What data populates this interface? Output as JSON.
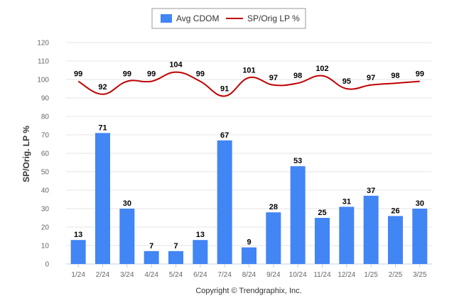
{
  "chart_data": {
    "type": "bar",
    "categories": [
      "1/24",
      "2/24",
      "3/24",
      "4/24",
      "5/24",
      "6/24",
      "7/24",
      "8/24",
      "9/24",
      "10/24",
      "11/24",
      "12/24",
      "1/25",
      "2/25",
      "3/25"
    ],
    "series": [
      {
        "name": "Avg CDOM",
        "type": "bar",
        "color": "#4285f4",
        "values": [
          13,
          71,
          30,
          7,
          7,
          13,
          67,
          9,
          28,
          53,
          25,
          31,
          37,
          26,
          30
        ]
      },
      {
        "name": "SP/Orig LP %",
        "type": "line",
        "color": "#c00000",
        "values": [
          99,
          92,
          99,
          99,
          104,
          99,
          91,
          101,
          97,
          98,
          102,
          95,
          97,
          98,
          99
        ]
      }
    ],
    "ylabel": "SP/Orig. LP %",
    "ylim": [
      0,
      120
    ],
    "yticks": [
      0,
      10,
      20,
      30,
      40,
      50,
      60,
      70,
      80,
      90,
      100,
      110,
      120
    ],
    "grid": true,
    "legend_position": "top-center"
  },
  "credit": "Copyright © Trendgraphix, Inc."
}
